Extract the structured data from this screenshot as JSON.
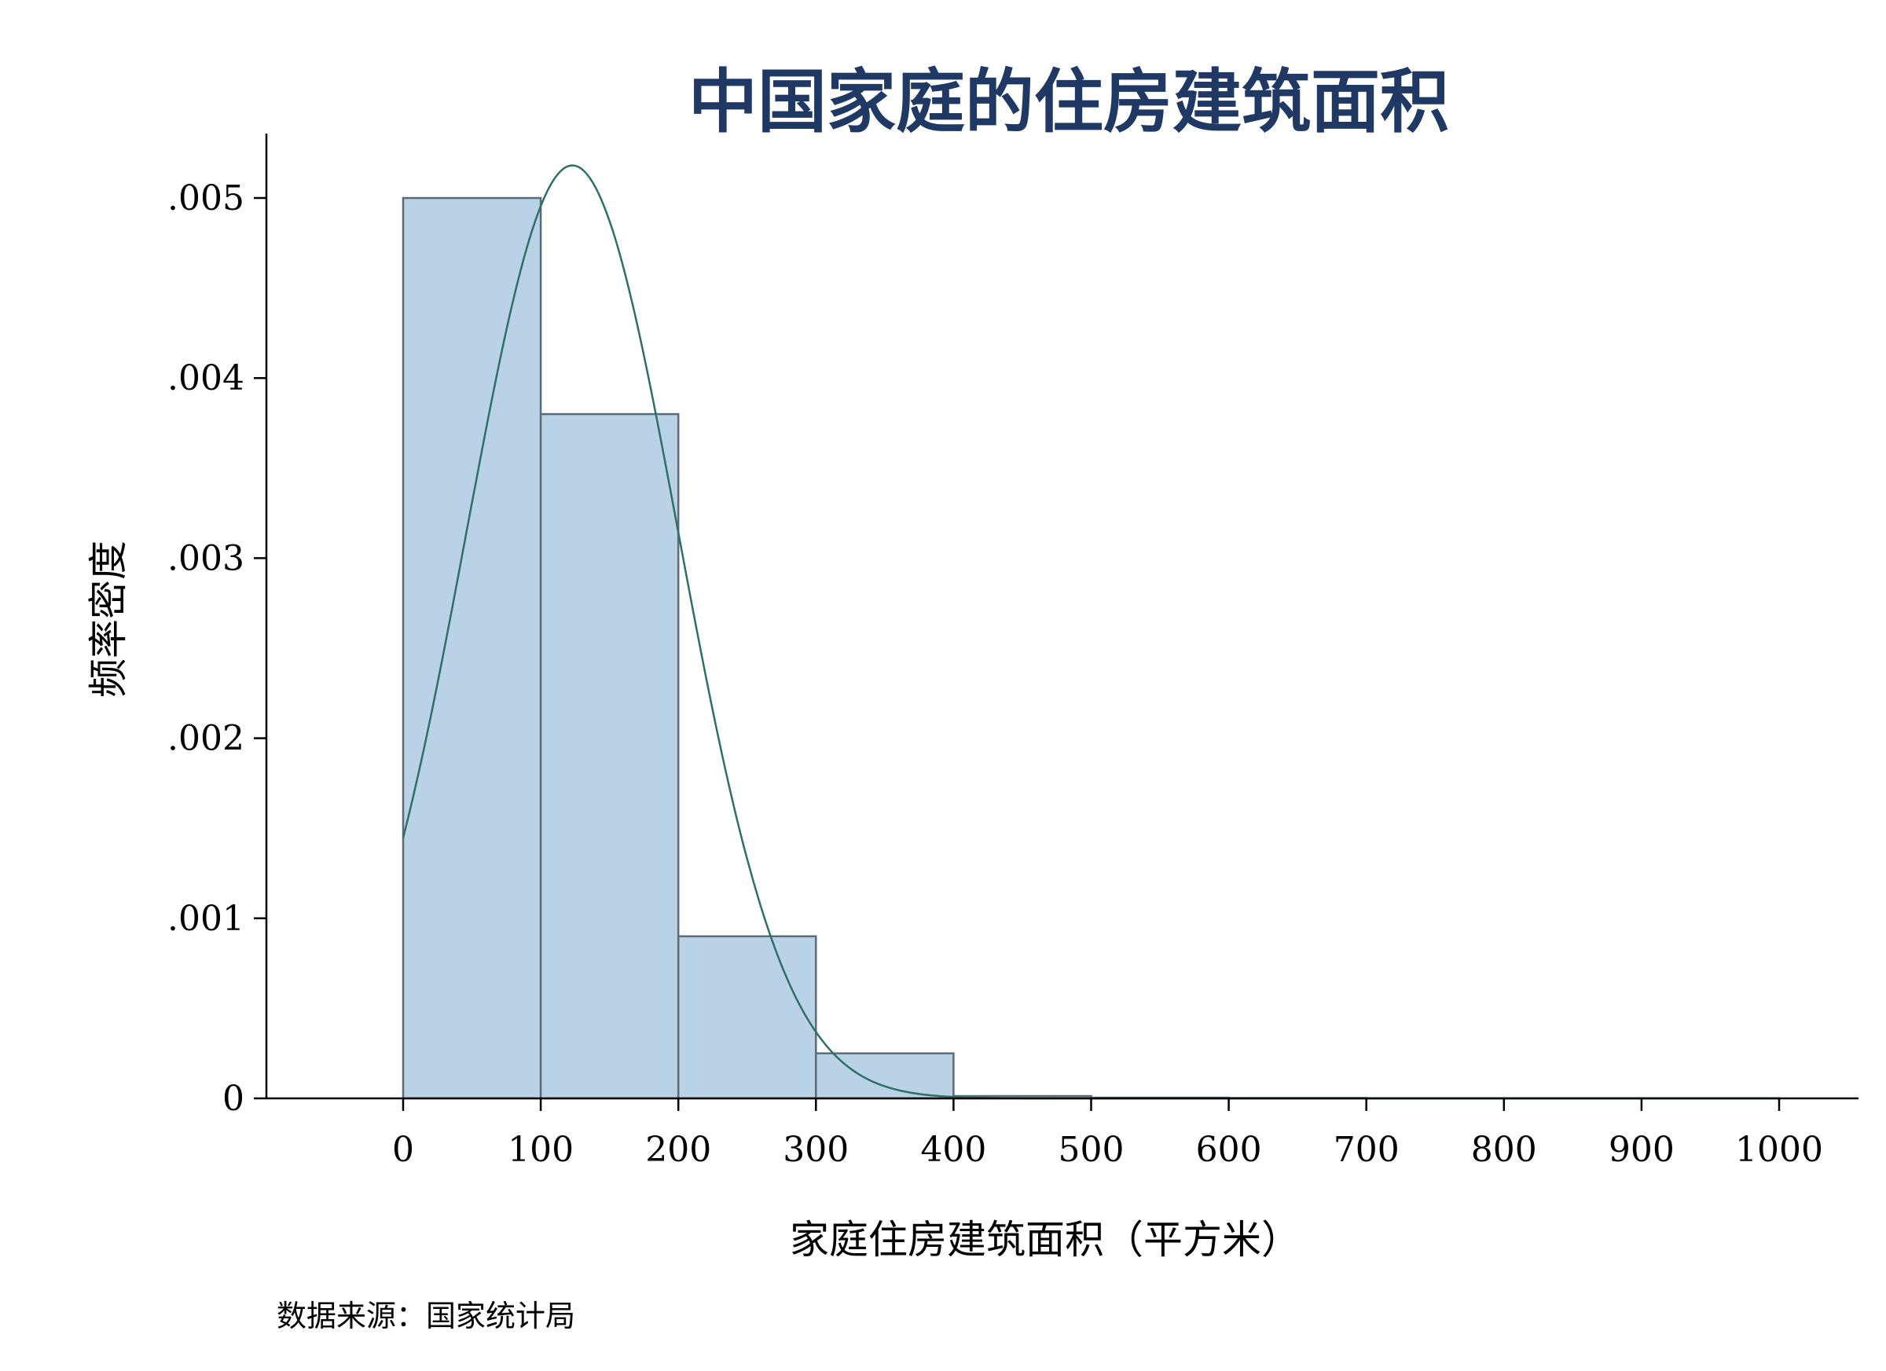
{
  "chart_data": {
    "type": "bar",
    "subtype": "histogram",
    "title": "中国家庭的住房建筑面积",
    "xlabel": "家庭住房建筑面积（平方米）",
    "ylabel": "频率密度",
    "source": "数据来源：国家统计局",
    "xlim": [
      -50,
      1025
    ],
    "ylim": [
      0,
      0.0054
    ],
    "x_ticks": [
      0,
      100,
      200,
      300,
      400,
      500,
      600,
      700,
      800,
      900,
      1000
    ],
    "x_tick_labels": [
      "0",
      "100",
      "200",
      "300",
      "400",
      "500",
      "600",
      "700",
      "800",
      "900",
      "1000"
    ],
    "y_ticks": [
      0,
      0.001,
      0.002,
      0.003,
      0.004,
      0.005
    ],
    "y_tick_labels": [
      "0",
      ".001",
      ".002",
      ".003",
      ".004",
      ".005"
    ],
    "bins": [
      {
        "start": 0,
        "end": 100,
        "density": 0.005
      },
      {
        "start": 100,
        "end": 200,
        "density": 0.0038
      },
      {
        "start": 200,
        "end": 300,
        "density": 0.0009
      },
      {
        "start": 300,
        "end": 400,
        "density": 0.00025
      },
      {
        "start": 400,
        "end": 500,
        "density": 1.3e-05
      },
      {
        "start": 500,
        "end": 600,
        "density": 4e-06
      },
      {
        "start": 600,
        "end": 700,
        "density": 2e-06
      },
      {
        "start": 700,
        "end": 800,
        "density": 1e-06
      },
      {
        "start": 800,
        "end": 900,
        "density": 1e-06
      },
      {
        "start": 900,
        "end": 1000,
        "density": 1e-06
      }
    ],
    "normal_curve": {
      "mean": 123,
      "sd": 77,
      "range": [
        0,
        1000
      ]
    },
    "grid": false,
    "legend": "none",
    "colors": {
      "title": "#1f3864",
      "bar_fill": "#bad2e6",
      "bar_stroke": "#5c6b78",
      "curve": "#2e6f6a",
      "axis": "#000000"
    }
  }
}
